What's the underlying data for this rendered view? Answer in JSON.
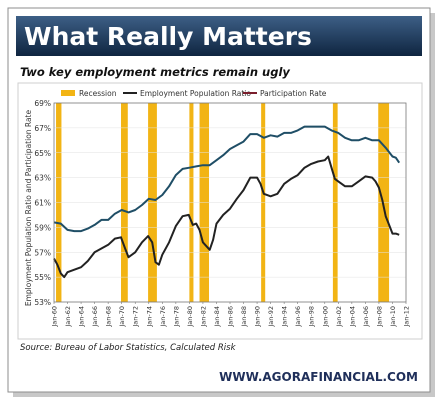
{
  "banner_title": "What Really Matters",
  "subtitle": "Two key employment metrics remain ugly",
  "source": "Source: Bureau of Labor Statistics, Calculated Risk",
  "website": "WWW.AGORAFINANCIAL.COM",
  "colors": {
    "banner_top": "#3d5f86",
    "banner_bottom": "#0f2540",
    "recession": "#f2b414",
    "employment_line": "#222222",
    "participation_line": "#1f4e66",
    "participation_legend": "#7a1e2c"
  },
  "chart_data": {
    "type": "line",
    "title": "",
    "ylabel": "Employment Population Ratio and Participation Rate",
    "ylim": [
      53,
      69
    ],
    "yticks": [
      "53%",
      "55%",
      "57%",
      "59%",
      "61%",
      "63%",
      "65%",
      "67%",
      "69%"
    ],
    "xlim": [
      1960,
      2012
    ],
    "xticks": [
      "Jan-60",
      "Jan-62",
      "Jan-64",
      "Jan-66",
      "Jan-68",
      "Jan-70",
      "Jan-72",
      "Jan-74",
      "Jan-76",
      "Jan-78",
      "Jan-80",
      "Jan-82",
      "Jan-84",
      "Jan-86",
      "Jan-88",
      "Jan-90",
      "Jan-92",
      "Jan-94",
      "Jan-96",
      "Jan-98",
      "Jan-00",
      "Jan-02",
      "Jan-04",
      "Jan-06",
      "Jan-08",
      "Jan-10",
      "Jan-12"
    ],
    "legend": [
      "Recession",
      "Employment Population Ratio",
      "Participation Rate"
    ],
    "legend_position": "top",
    "recessions": [
      [
        1960.3,
        1961.1
      ],
      [
        1969.9,
        1970.9
      ],
      [
        1973.9,
        1975.2
      ],
      [
        1980.0,
        1980.6
      ],
      [
        1981.5,
        1982.9
      ],
      [
        1990.6,
        1991.2
      ],
      [
        2001.2,
        2001.9
      ],
      [
        2007.9,
        2009.5
      ]
    ],
    "series": [
      {
        "name": "Employment Population Ratio",
        "x": [
          1960,
          1960.5,
          1961,
          1961.5,
          1962,
          1963,
          1964,
          1965,
          1966,
          1967,
          1968,
          1969,
          1969.9,
          1970.5,
          1971,
          1972,
          1973,
          1973.9,
          1974.5,
          1975,
          1975.5,
          1976,
          1977,
          1978,
          1979,
          1979.9,
          1980.5,
          1981,
          1981.5,
          1982,
          1983,
          1983.5,
          1984,
          1985,
          1986,
          1987,
          1988,
          1989,
          1990,
          1990.5,
          1991,
          1992,
          1993,
          1994,
          1995,
          1996,
          1997,
          1998,
          1999,
          2000,
          2000.5,
          2001,
          2001.5,
          2002,
          2003,
          2004,
          2005,
          2006,
          2007,
          2007.5,
          2008,
          2008.5,
          2009,
          2009.5,
          2010,
          2010.5,
          2011
        ],
        "values": [
          56.5,
          56.0,
          55.3,
          55.0,
          55.4,
          55.6,
          55.8,
          56.3,
          57.0,
          57.3,
          57.6,
          58.1,
          58.2,
          57.3,
          56.6,
          57.0,
          57.8,
          58.3,
          57.8,
          56.2,
          56.0,
          56.8,
          57.8,
          59.1,
          59.9,
          60.0,
          59.2,
          59.3,
          58.8,
          57.8,
          57.2,
          58.0,
          59.3,
          60.0,
          60.5,
          61.3,
          62.0,
          63.0,
          63.0,
          62.5,
          61.7,
          61.5,
          61.7,
          62.5,
          62.9,
          63.2,
          63.8,
          64.1,
          64.3,
          64.4,
          64.7,
          63.8,
          62.9,
          62.7,
          62.3,
          62.3,
          62.7,
          63.1,
          63.0,
          62.7,
          62.2,
          61.2,
          59.9,
          59.2,
          58.5,
          58.5,
          58.4
        ]
      },
      {
        "name": "Participation Rate",
        "x": [
          1960,
          1961,
          1962,
          1963,
          1964,
          1965,
          1966,
          1967,
          1968,
          1969,
          1970,
          1971,
          1972,
          1973,
          1974,
          1975,
          1976,
          1977,
          1978,
          1979,
          1980,
          1981,
          1982,
          1983,
          1984,
          1985,
          1986,
          1987,
          1988,
          1989,
          1990,
          1991,
          1992,
          1993,
          1994,
          1995,
          1996,
          1997,
          1998,
          1999,
          2000,
          2001,
          2002,
          2003,
          2004,
          2005,
          2006,
          2007,
          2008,
          2009,
          2010,
          2010.5,
          2011
        ],
        "values": [
          59.4,
          59.3,
          58.8,
          58.7,
          58.7,
          58.9,
          59.2,
          59.6,
          59.6,
          60.1,
          60.4,
          60.2,
          60.4,
          60.8,
          61.3,
          61.2,
          61.6,
          62.3,
          63.2,
          63.7,
          63.8,
          63.9,
          64.0,
          64.0,
          64.4,
          64.8,
          65.3,
          65.6,
          65.9,
          66.5,
          66.5,
          66.2,
          66.4,
          66.3,
          66.6,
          66.6,
          66.8,
          67.1,
          67.1,
          67.1,
          67.1,
          66.8,
          66.6,
          66.2,
          66.0,
          66.0,
          66.2,
          66.0,
          66.0,
          65.4,
          64.7,
          64.6,
          64.2
        ]
      }
    ]
  }
}
